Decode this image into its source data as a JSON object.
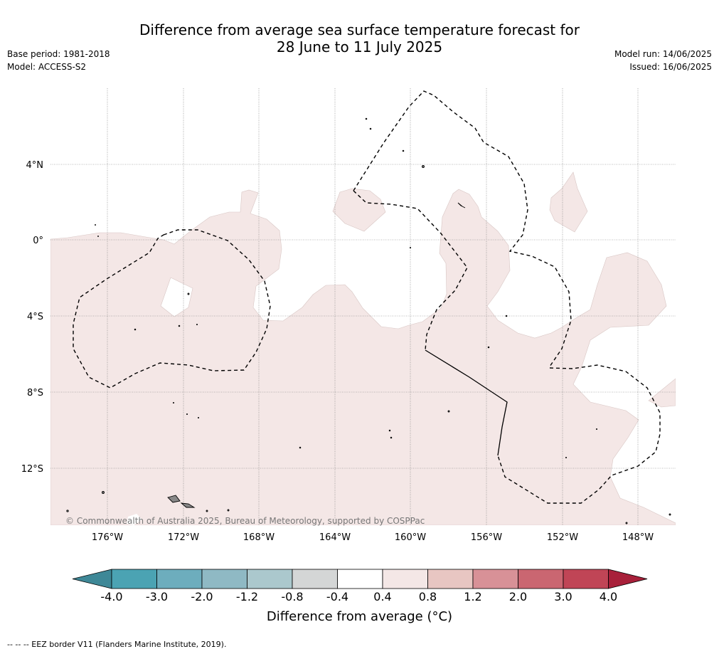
{
  "title": {
    "line1": "Difference from average sea surface temperature forecast for",
    "line2": "28 June to 11 July 2025"
  },
  "meta_left": {
    "base_period": "Base period: 1981-2018",
    "model": "Model: ACCESS-S2"
  },
  "meta_right": {
    "model_run": "Model run: 14/06/2025",
    "issued": "Issued: 16/06/2025"
  },
  "map": {
    "lat_labels": [
      "4°N",
      "0°",
      "4°S",
      "8°S",
      "12°S"
    ],
    "lon_labels": [
      "176°W",
      "172°W",
      "168°W",
      "164°W",
      "160°W",
      "156°W",
      "152°W",
      "148°W"
    ],
    "copyright": "© Commonwealth of Australia 2025, Bureau of Meteorology, supported by COSPPac",
    "anomaly_fill_color": "#f4e7e6",
    "eez_line_color": "#000000"
  },
  "colorbar": {
    "ticks": [
      "-4.0",
      "-3.0",
      "-2.0",
      "-1.2",
      "-0.8",
      "-0.4",
      "0.4",
      "0.8",
      "1.2",
      "2.0",
      "3.0",
      "4.0"
    ],
    "colors": [
      "#3e8897",
      "#4ba3b3",
      "#6dadbd",
      "#8fb9c4",
      "#abc8cd",
      "#d4d6d6",
      "#ffffff",
      "#f4e7e6",
      "#e8c6c2",
      "#d89197",
      "#ca6671",
      "#c04556",
      "#a8203a"
    ],
    "title": "Difference from average (°C)"
  },
  "footer": "--  --  -- EEZ border V11 (Flanders Marine Institute, 2019)."
}
